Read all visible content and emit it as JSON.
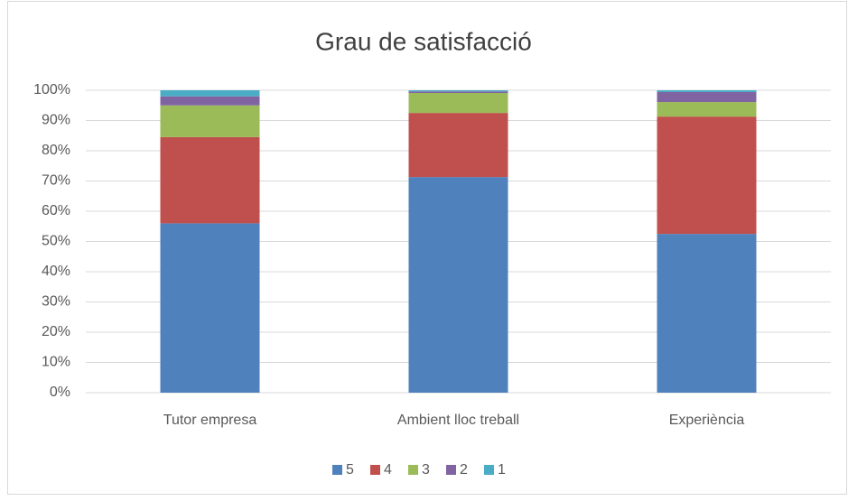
{
  "chart_data": {
    "type": "stacked_bar_100",
    "title": "Grau de satisfacció",
    "categories": [
      "Tutor empresa",
      "Ambient lloc treball",
      "Experiència"
    ],
    "series": [
      {
        "name": "5",
        "color": "#4f81bd",
        "values": [
          56,
          71.3,
          52.5
        ]
      },
      {
        "name": "4",
        "color": "#c0504d",
        "values": [
          28.5,
          21.2,
          38.8
        ]
      },
      {
        "name": "3",
        "color": "#9bbb59",
        "values": [
          10.5,
          6.6,
          4.8
        ]
      },
      {
        "name": "2",
        "color": "#8064a2",
        "values": [
          3,
          0.5,
          3.3
        ]
      },
      {
        "name": "1",
        "color": "#4bacc6",
        "values": [
          2,
          0.4,
          0.6
        ]
      }
    ],
    "ylim": [
      0,
      100
    ],
    "yticks": [
      {
        "value": 0,
        "label": "0%"
      },
      {
        "value": 10,
        "label": "10%"
      },
      {
        "value": 20,
        "label": "20%"
      },
      {
        "value": 30,
        "label": "30%"
      },
      {
        "value": 40,
        "label": "40%"
      },
      {
        "value": 50,
        "label": "50%"
      },
      {
        "value": 60,
        "label": "60%"
      },
      {
        "value": 70,
        "label": "70%"
      },
      {
        "value": 80,
        "label": "80%"
      },
      {
        "value": 90,
        "label": "90%"
      },
      {
        "value": 100,
        "label": "100%"
      }
    ],
    "grid": true,
    "legend": "bottom"
  }
}
